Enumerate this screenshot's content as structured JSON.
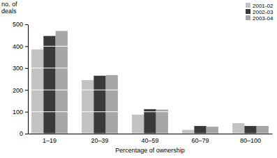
{
  "chart_data": {
    "type": "bar",
    "y_label": "no. of deals",
    "x_label": "Percentage of ownership",
    "categories": [
      "1–19",
      "20–39",
      "40–59",
      "60–79",
      "80–100"
    ],
    "series": [
      {
        "name": "2001-02",
        "color": "#c2c2c2",
        "values": [
          385,
          245,
          87,
          17,
          48
        ]
      },
      {
        "name": "2002-03",
        "color": "#3a3a3a",
        "values": [
          447,
          265,
          112,
          35,
          35
        ]
      },
      {
        "name": "2003-04",
        "color": "#a6a6a6",
        "values": [
          470,
          268,
          110,
          32,
          35
        ]
      }
    ],
    "ylim": [
      0,
      500
    ],
    "yticks": [
      0,
      100,
      200,
      300,
      400,
      500
    ],
    "grid": true,
    "legend": "top-right"
  }
}
